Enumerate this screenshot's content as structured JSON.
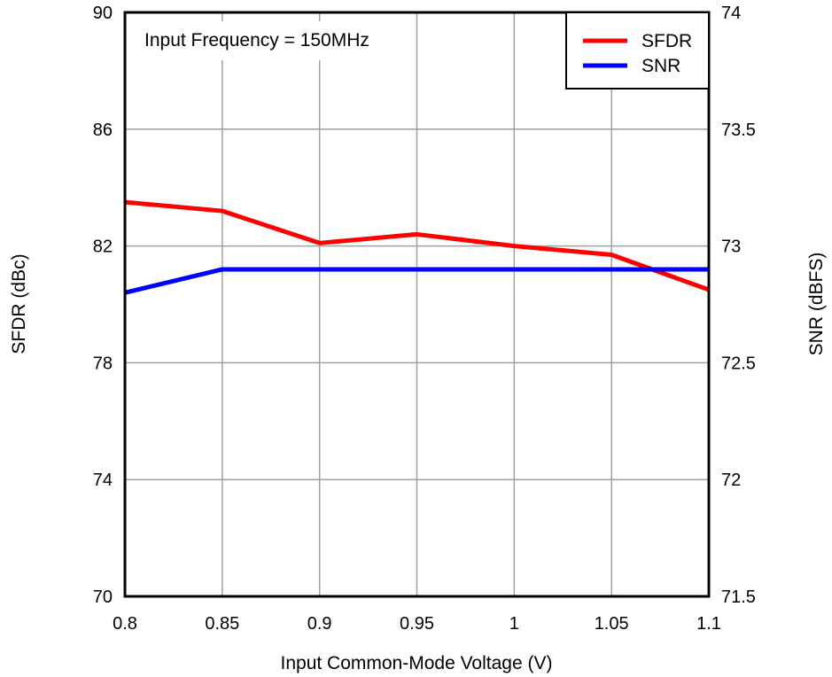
{
  "chart_data": {
    "type": "line",
    "title": "",
    "annotation": "Input Frequency = 150MHz",
    "xlabel": "Input Common-Mode Voltage (V)",
    "ylabel": "SFDR (dBc)",
    "y2label": "SNR (dBFS)",
    "xlim": [
      0.8,
      1.1
    ],
    "ylim": [
      70,
      90
    ],
    "y2lim": [
      71.5,
      74
    ],
    "grid": true,
    "legend_position": "top-right",
    "x": [
      0.8,
      0.85,
      0.9,
      0.95,
      1.0,
      1.05,
      1.1
    ],
    "x_tick_labels": [
      "0.8",
      "0.85",
      "0.9",
      "0.95",
      "1",
      "1.05",
      "1.1"
    ],
    "y_ticks": [
      70,
      74,
      78,
      82,
      86,
      90
    ],
    "y_tick_labels": [
      "70",
      "74",
      "78",
      "82",
      "86",
      "90"
    ],
    "y2_ticks": [
      71.5,
      72,
      72.5,
      73,
      73.5,
      74
    ],
    "y2_tick_labels": [
      "71.5",
      "72",
      "72.5",
      "73",
      "73.5",
      "74"
    ],
    "series": [
      {
        "name": "SFDR",
        "axis": "left",
        "color": "#ff0000",
        "values": [
          83.5,
          83.2,
          82.1,
          82.4,
          82.0,
          81.7,
          80.5
        ]
      },
      {
        "name": "SNR",
        "axis": "right",
        "color": "#0000ff",
        "values": [
          72.8,
          72.9,
          72.9,
          72.9,
          72.9,
          72.9,
          72.9
        ]
      }
    ]
  }
}
